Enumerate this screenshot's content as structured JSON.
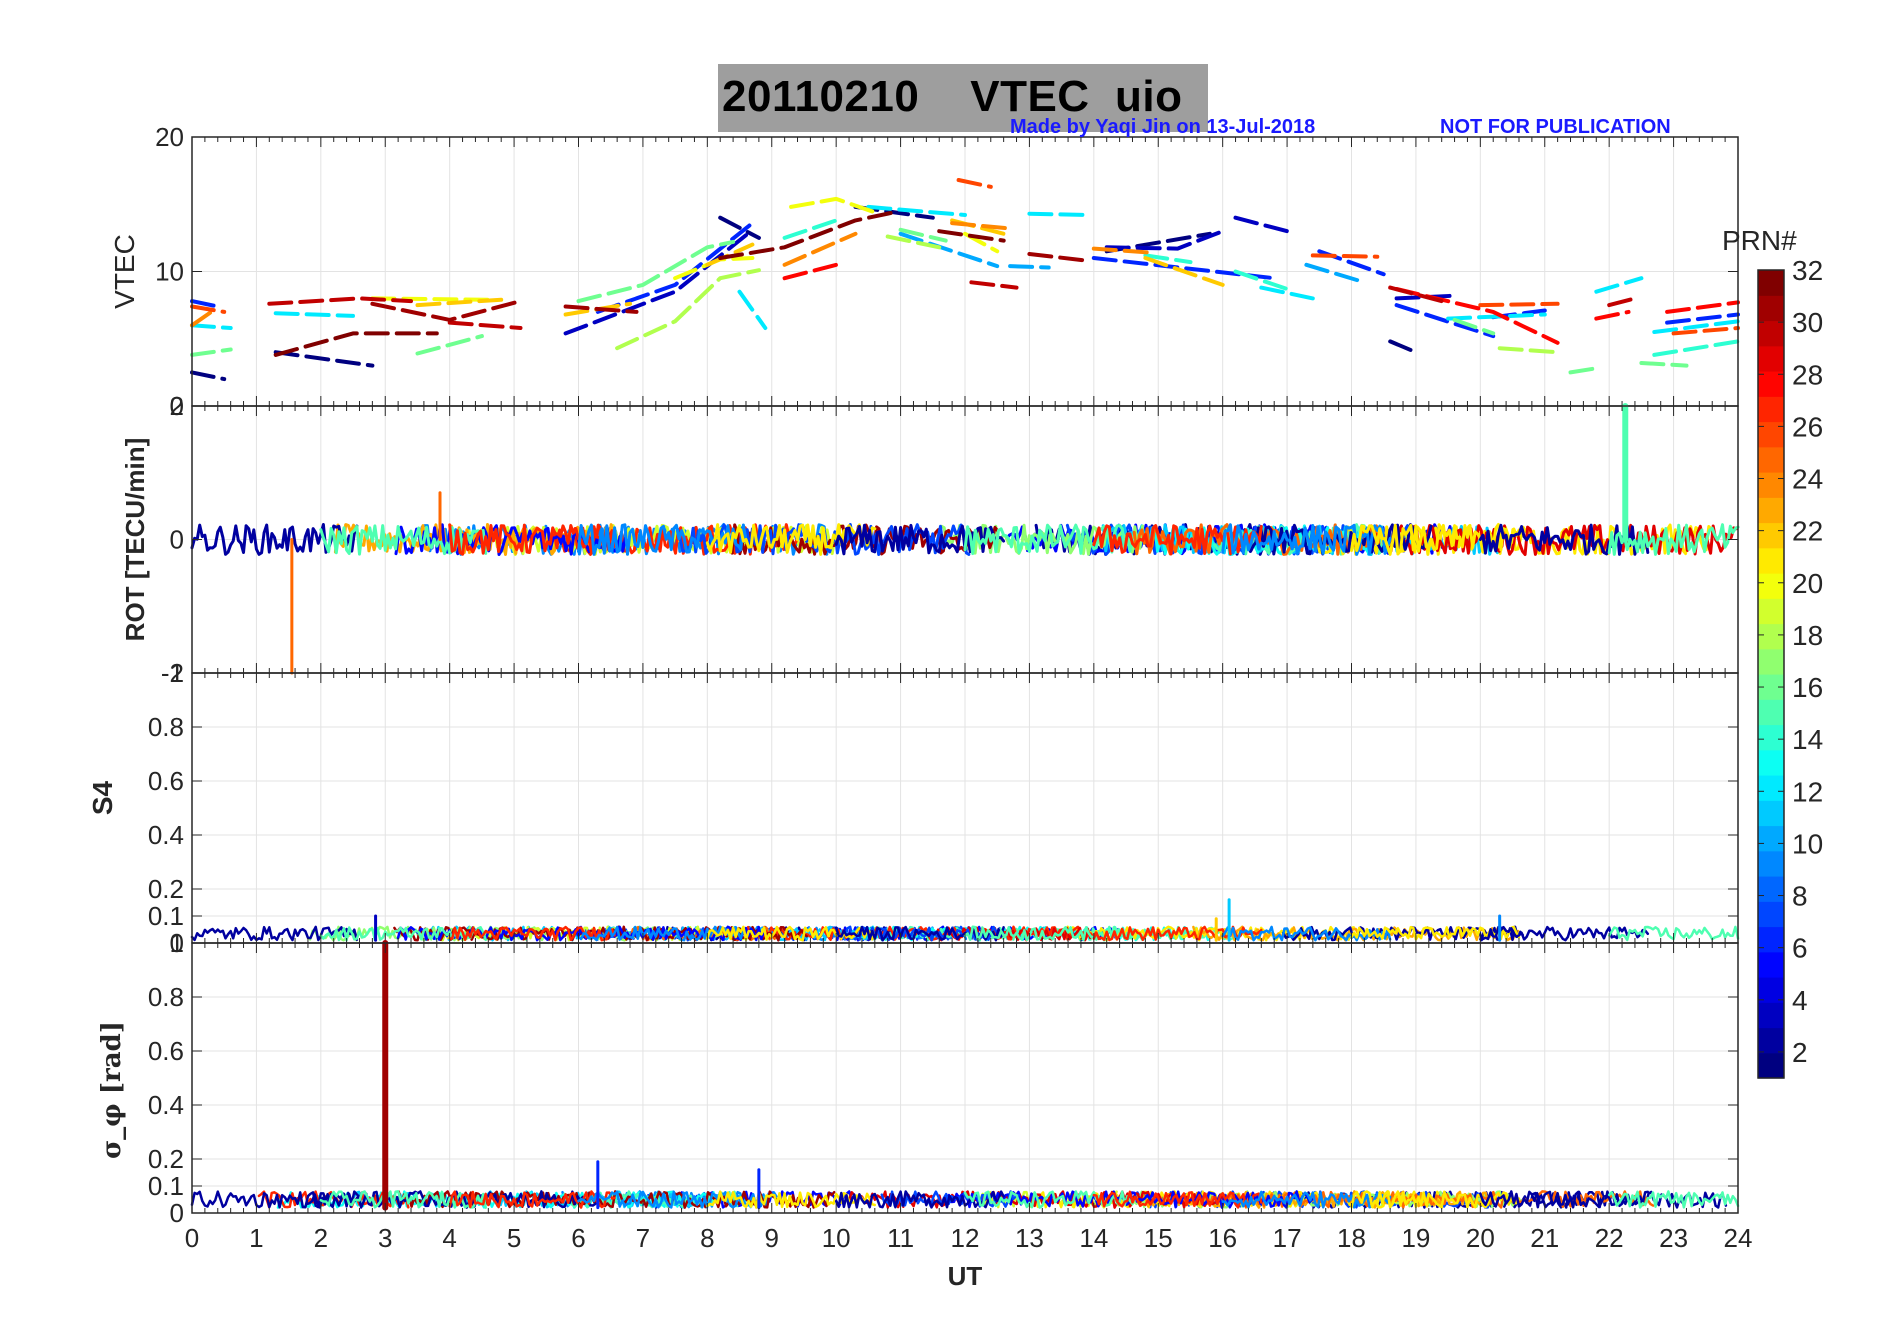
{
  "header": {
    "title": "20110210    VTEC  uio",
    "author_note": "Made by Yaqi Jin on 13-Jul-2018",
    "publication_note": "NOT FOR PUBLICATION",
    "title_bg_color": "#9e9e9e",
    "note_color": "#1a1aff"
  },
  "x_axis": {
    "label": "UT",
    "range": [
      0,
      24
    ],
    "ticks": [
      "0",
      "1",
      "2",
      "3",
      "4",
      "5",
      "6",
      "7",
      "8",
      "9",
      "10",
      "11",
      "12",
      "13",
      "14",
      "15",
      "16",
      "17",
      "18",
      "19",
      "20",
      "21",
      "22",
      "23",
      "24"
    ]
  },
  "colorbar": {
    "title": "PRN#",
    "range": [
      1,
      32
    ],
    "tick_labels": [
      "2",
      "4",
      "6",
      "8",
      "10",
      "12",
      "14",
      "16",
      "18",
      "20",
      "22",
      "24",
      "26",
      "28",
      "30",
      "32"
    ],
    "colormap": "jet"
  },
  "chart_data": [
    {
      "type": "line",
      "name": "VTEC",
      "ylabel": "VTEC",
      "ylim": [
        0,
        20
      ],
      "yticks": [
        "0",
        "10",
        "20"
      ],
      "xlim": [
        0,
        24
      ],
      "grid": true,
      "series": [
        {
          "prn": 1,
          "segments": [
            [
              [
                0.0,
                2.5
              ],
              [
                0.5,
                2.0
              ]
            ],
            [
              [
                1.3,
                4.0
              ],
              [
                2.8,
                3.0
              ]
            ],
            [
              [
                8.2,
                14.0
              ],
              [
                8.8,
                12.5
              ]
            ],
            [
              [
                10.3,
                14.8
              ],
              [
                11.5,
                14.0
              ]
            ],
            [
              [
                14.2,
                11.5
              ],
              [
                15.8,
                12.8
              ]
            ],
            [
              [
                18.6,
                4.8
              ],
              [
                19.0,
                4.0
              ]
            ]
          ]
        },
        {
          "prn": 3,
          "segments": [
            [
              [
                5.8,
                5.4
              ],
              [
                7.5,
                8.5
              ],
              [
                8.6,
                12.7
              ]
            ],
            [
              [
                14.2,
                11.8
              ],
              [
                15.3,
                11.7
              ],
              [
                16.0,
                13.0
              ]
            ],
            [
              [
                16.2,
                14.0
              ],
              [
                17.0,
                13.0
              ]
            ],
            [
              [
                18.7,
                8.0
              ],
              [
                19.6,
                8.2
              ]
            ]
          ]
        },
        {
          "prn": 6,
          "segments": [
            [
              [
                0.0,
                7.8
              ],
              [
                0.4,
                7.4
              ]
            ],
            [
              [
                6.3,
                7.0
              ],
              [
                7.5,
                9.0
              ],
              [
                8.7,
                13.6
              ]
            ],
            [
              [
                14.0,
                11.0
              ],
              [
                16.8,
                9.5
              ]
            ],
            [
              [
                17.5,
                11.5
              ],
              [
                18.5,
                9.8
              ]
            ],
            [
              [
                18.7,
                7.5
              ],
              [
                20.2,
                5.2
              ]
            ],
            [
              [
                20.2,
                6.6
              ],
              [
                21.0,
                7.1
              ]
            ],
            [
              [
                22.9,
                6.2
              ],
              [
                24.0,
                6.8
              ]
            ]
          ]
        },
        {
          "prn": 10,
          "segments": [
            [
              [
                11.0,
                12.8
              ],
              [
                12.5,
                10.4
              ]
            ],
            [
              [
                12.7,
                10.4
              ],
              [
                13.3,
                10.3
              ]
            ],
            [
              [
                17.3,
                10.5
              ],
              [
                18.2,
                9.2
              ]
            ]
          ]
        },
        {
          "prn": 12,
          "segments": [
            [
              [
                0.0,
                6.0
              ],
              [
                0.6,
                5.8
              ]
            ],
            [
              [
                1.3,
                6.9
              ],
              [
                2.5,
                6.7
              ]
            ],
            [
              [
                8.5,
                8.5
              ],
              [
                8.9,
                5.8
              ]
            ],
            [
              [
                10.5,
                14.8
              ],
              [
                12.0,
                14.2
              ]
            ],
            [
              [
                13.0,
                14.3
              ],
              [
                13.9,
                14.2
              ]
            ],
            [
              [
                16.6,
                8.8
              ],
              [
                17.4,
                8.0
              ]
            ],
            [
              [
                19.5,
                6.5
              ],
              [
                21.0,
                6.8
              ]
            ],
            [
              [
                21.8,
                8.5
              ],
              [
                22.5,
                9.5
              ]
            ],
            [
              [
                22.7,
                5.5
              ],
              [
                24.0,
                6.3
              ]
            ]
          ]
        },
        {
          "prn": 14,
          "segments": [
            [
              [
                9.2,
                12.5
              ],
              [
                10.0,
                13.8
              ]
            ],
            [
              [
                14.8,
                11.2
              ],
              [
                15.5,
                10.7
              ]
            ],
            [
              [
                16.2,
                10.0
              ],
              [
                17.0,
                8.7
              ]
            ],
            [
              [
                22.7,
                3.8
              ],
              [
                24.0,
                4.8
              ]
            ]
          ]
        },
        {
          "prn": 16,
          "segments": [
            [
              [
                0.0,
                3.8
              ],
              [
                0.6,
                4.2
              ]
            ],
            [
              [
                3.5,
                3.9
              ],
              [
                4.5,
                5.2
              ]
            ],
            [
              [
                6.0,
                7.8
              ],
              [
                7.0,
                9.0
              ],
              [
                8.0,
                11.8
              ],
              [
                8.4,
                12.2
              ]
            ],
            [
              [
                11.0,
                13.1
              ],
              [
                11.7,
                12.3
              ]
            ],
            [
              [
                19.6,
                6.4
              ],
              [
                20.2,
                5.4
              ]
            ],
            [
              [
                21.4,
                2.5
              ],
              [
                21.8,
                2.8
              ]
            ],
            [
              [
                22.5,
                3.2
              ],
              [
                23.2,
                3.0
              ]
            ]
          ]
        },
        {
          "prn": 18,
          "segments": [
            [
              [
                6.6,
                4.3
              ],
              [
                7.5,
                6.3
              ],
              [
                8.2,
                9.5
              ],
              [
                8.8,
                10.1
              ]
            ],
            [
              [
                10.8,
                12.6
              ],
              [
                11.6,
                11.8
              ]
            ],
            [
              [
                20.3,
                4.3
              ],
              [
                21.2,
                4.0
              ]
            ]
          ]
        },
        {
          "prn": 20,
          "segments": [
            [
              [
                2.8,
                8.0
              ],
              [
                4.6,
                7.9
              ]
            ],
            [
              [
                7.5,
                9.5
              ],
              [
                8.2,
                10.9
              ],
              [
                8.7,
                11.0
              ]
            ],
            [
              [
                9.3,
                14.8
              ],
              [
                10.0,
                15.4
              ],
              [
                10.6,
                14.4
              ]
            ],
            [
              [
                12.0,
                12.8
              ],
              [
                12.5,
                11.5
              ]
            ]
          ]
        },
        {
          "prn": 22,
          "segments": [
            [
              [
                3.5,
                7.5
              ],
              [
                4.8,
                7.9
              ]
            ],
            [
              [
                5.8,
                6.8
              ],
              [
                6.8,
                7.6
              ]
            ],
            [
              [
                8.0,
                10.5
              ],
              [
                8.7,
                12.0
              ]
            ],
            [
              [
                11.8,
                13.8
              ],
              [
                12.6,
                12.8
              ]
            ],
            [
              [
                14.8,
                11.0
              ],
              [
                16.0,
                9.0
              ]
            ]
          ]
        },
        {
          "prn": 24,
          "segments": [
            [
              [
                0.0,
                6.0
              ],
              [
                0.3,
                7.0
              ]
            ],
            [
              [
                9.2,
                10.5
              ],
              [
                10.3,
                12.8
              ]
            ],
            [
              [
                11.8,
                13.6
              ],
              [
                12.7,
                13.2
              ]
            ],
            [
              [
                14.0,
                11.7
              ],
              [
                14.9,
                11.4
              ]
            ]
          ]
        },
        {
          "prn": 26,
          "segments": [
            [
              [
                0.0,
                7.4
              ],
              [
                0.5,
                7.0
              ]
            ],
            [
              [
                11.9,
                16.8
              ],
              [
                12.4,
                16.3
              ]
            ],
            [
              [
                17.4,
                11.2
              ],
              [
                18.4,
                11.1
              ]
            ],
            [
              [
                20.0,
                7.5
              ],
              [
                21.2,
                7.6
              ]
            ],
            [
              [
                23.0,
                5.4
              ],
              [
                24.0,
                5.8
              ]
            ]
          ]
        },
        {
          "prn": 28,
          "segments": [
            [
              [
                9.2,
                9.5
              ],
              [
                10.0,
                10.5
              ]
            ],
            [
              [
                18.7,
                8.7
              ],
              [
                20.2,
                7.0
              ],
              [
                21.2,
                4.7
              ]
            ],
            [
              [
                21.8,
                6.5
              ],
              [
                22.3,
                7.0
              ]
            ],
            [
              [
                22.9,
                7.0
              ],
              [
                24.0,
                7.7
              ]
            ]
          ]
        },
        {
          "prn": 30,
          "segments": [
            [
              [
                1.2,
                7.6
              ],
              [
                2.6,
                8.0
              ],
              [
                3.4,
                7.8
              ]
            ],
            [
              [
                4.0,
                6.2
              ],
              [
                5.1,
                5.8
              ]
            ],
            [
              [
                12.1,
                9.2
              ],
              [
                12.8,
                8.8
              ]
            ],
            [
              [
                18.6,
                8.8
              ],
              [
                19.4,
                7.8
              ]
            ],
            [
              [
                22.0,
                7.5
              ],
              [
                22.4,
                8.0
              ]
            ]
          ]
        },
        {
          "prn": 31,
          "segments": [
            [
              [
                2.8,
                7.6
              ],
              [
                4.0,
                6.4
              ],
              [
                5.1,
                7.8
              ]
            ],
            [
              [
                5.8,
                7.4
              ],
              [
                6.9,
                7.0
              ]
            ],
            [
              [
                13.0,
                11.3
              ],
              [
                13.9,
                10.8
              ]
            ]
          ]
        },
        {
          "prn": 32,
          "segments": [
            [
              [
                1.3,
                3.8
              ],
              [
                2.5,
                5.4
              ],
              [
                3.8,
                5.4
              ]
            ],
            [
              [
                8.2,
                11.0
              ],
              [
                9.2,
                11.8
              ],
              [
                10.3,
                13.8
              ],
              [
                10.9,
                14.4
              ]
            ],
            [
              [
                11.6,
                13.0
              ],
              [
                12.6,
                12.3
              ]
            ]
          ]
        }
      ]
    },
    {
      "type": "line",
      "name": "ROT",
      "ylabel": "ROT [TECU/min]",
      "ylim": [
        -2,
        2
      ],
      "yticks": [
        "-2",
        "0",
        "2"
      ],
      "xlim": [
        0,
        24
      ],
      "grid": true,
      "description_values": {
        "noise_band": [
          -0.35,
          0.35
        ],
        "spikes": [
          {
            "x": 1.55,
            "y": -2.0,
            "prn": 25
          },
          {
            "x": 3.85,
            "y": 0.7,
            "prn": 25
          },
          {
            "x": 22.25,
            "y": 2.0,
            "prn": 15
          }
        ]
      }
    },
    {
      "type": "line",
      "name": "S4",
      "ylabel": "S4",
      "ylim": [
        0,
        1
      ],
      "yticks": [
        "0",
        "0.1",
        "0.2",
        "0.4",
        "0.6",
        "0.8",
        "1"
      ],
      "xlim": [
        0,
        24
      ],
      "grid": true,
      "description_values": {
        "baseline": [
          0.01,
          0.06
        ],
        "spikes": [
          {
            "x": 16.1,
            "y": 0.16,
            "prn": 11
          },
          {
            "x": 20.3,
            "y": 0.1,
            "prn": 9
          },
          {
            "x": 15.9,
            "y": 0.09,
            "prn": 22
          },
          {
            "x": 2.85,
            "y": 0.1,
            "prn": 3
          }
        ]
      }
    },
    {
      "type": "line",
      "name": "sigma_phi",
      "ylabel": "σ_φ [rad]",
      "ylim": [
        0,
        1
      ],
      "yticks": [
        "0",
        "0.1",
        "0.2",
        "0.4",
        "0.6",
        "0.8",
        "1"
      ],
      "xlim": [
        0,
        24
      ],
      "grid": true,
      "description_values": {
        "baseline": [
          0.02,
          0.08
        ],
        "spikes": [
          {
            "x": 3.0,
            "y": 1.0,
            "prn": 31
          },
          {
            "x": 6.3,
            "y": 0.19,
            "prn": 6
          },
          {
            "x": 8.8,
            "y": 0.16,
            "prn": 6
          }
        ]
      }
    }
  ]
}
